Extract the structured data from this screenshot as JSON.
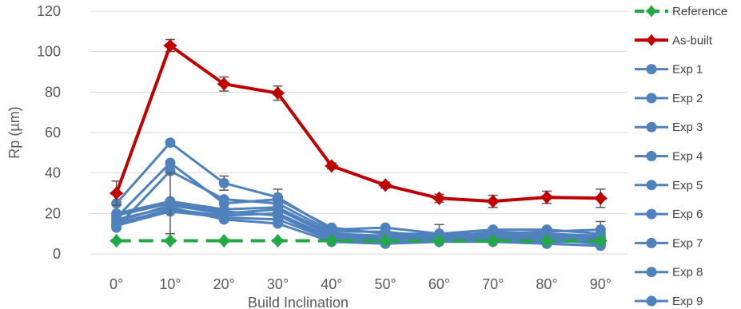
{
  "chart_data": {
    "type": "line",
    "title": "",
    "xlabel": "Build Inclination",
    "ylabel": "Rp (µm)",
    "categories": [
      "0°",
      "10°",
      "20°",
      "30°",
      "40°",
      "50°",
      "60°",
      "70°",
      "80°",
      "90°"
    ],
    "ylim": [
      0,
      120
    ],
    "yticks": [
      0,
      20,
      40,
      60,
      80,
      100,
      120
    ],
    "grid": true,
    "legend_position": "right",
    "series": [
      {
        "name": "Reference",
        "color": "#22a845",
        "style": "dashed",
        "marker": "star",
        "values": [
          6.5,
          6.5,
          6.5,
          6.5,
          6.5,
          6.5,
          6.5,
          6.5,
          6.5,
          6.5
        ],
        "errors": null
      },
      {
        "name": "As-built",
        "color": "#c00000",
        "style": "solid",
        "marker": "star",
        "values": [
          30,
          103,
          84,
          79.5,
          43.5,
          34,
          27.5,
          26,
          28,
          27.5
        ],
        "errors": [
          6,
          3,
          3.5,
          3.5,
          1.5,
          1.5,
          2,
          3,
          3,
          4.5
        ]
      },
      {
        "name": "Exp 1",
        "color": "#4f81bd",
        "style": "solid",
        "marker": "circle",
        "values": [
          25,
          55,
          35,
          28,
          12,
          13,
          10,
          12,
          12,
          10
        ],
        "errors": [
          0,
          0,
          3.5,
          4,
          0,
          0,
          4.5,
          0,
          0,
          6
        ]
      },
      {
        "name": "Exp 2",
        "color": "#4f81bd",
        "style": "solid",
        "marker": "circle",
        "values": [
          18,
          45,
          25,
          27,
          13,
          10,
          10,
          10,
          11,
          12
        ],
        "errors": [
          0,
          0,
          0,
          0,
          0,
          0,
          0,
          0,
          0,
          0
        ]
      },
      {
        "name": "Exp 3",
        "color": "#4f81bd",
        "style": "solid",
        "marker": "circle",
        "values": [
          13,
          41,
          27,
          25,
          11,
          11,
          8,
          11,
          10,
          9
        ],
        "errors": [
          0,
          0,
          0,
          0,
          0,
          0,
          0,
          0,
          0,
          0
        ]
      },
      {
        "name": "Exp 4",
        "color": "#4f81bd",
        "style": "solid",
        "marker": "circle",
        "values": [
          20,
          26,
          22,
          23,
          10,
          9,
          9,
          10,
          9,
          8
        ],
        "errors": [
          0,
          0,
          0,
          0,
          0,
          0,
          0,
          0,
          0,
          0
        ]
      },
      {
        "name": "Exp 5",
        "color": "#4f81bd",
        "style": "solid",
        "marker": "circle",
        "values": [
          16,
          24,
          20,
          22,
          9,
          8,
          8,
          9,
          8,
          7
        ],
        "errors": [
          0,
          0,
          0,
          0,
          0,
          0,
          0,
          0,
          0,
          0
        ]
      },
      {
        "name": "Exp 6",
        "color": "#4f81bd",
        "style": "solid",
        "marker": "circle",
        "values": [
          15,
          22,
          19,
          20,
          8,
          7,
          7,
          8,
          7,
          6
        ],
        "errors": [
          0,
          0,
          0,
          0,
          0,
          0,
          0,
          0,
          0,
          0
        ]
      },
      {
        "name": "Exp 7",
        "color": "#4f81bd",
        "style": "solid",
        "marker": "circle",
        "values": [
          14,
          21,
          18,
          17,
          7,
          6,
          7,
          7,
          7,
          5
        ],
        "errors": [
          0,
          0,
          0,
          0,
          0,
          0,
          0,
          0,
          0,
          0
        ]
      },
      {
        "name": "Exp 8",
        "color": "#4f81bd",
        "style": "solid",
        "marker": "circle",
        "values": [
          17,
          23,
          17,
          15,
          6,
          5,
          6,
          6,
          5,
          4
        ],
        "errors": [
          0,
          0,
          0,
          0,
          0,
          0,
          0,
          0,
          0,
          0
        ]
      },
      {
        "name": "Exp 9",
        "color": "#4f81bd",
        "style": "solid",
        "marker": "circle",
        "values": [
          19,
          25,
          21,
          19,
          7,
          6,
          6,
          7,
          6,
          6
        ],
        "errors": [
          0,
          15,
          0,
          0,
          0,
          0,
          0,
          0,
          0,
          0
        ]
      }
    ]
  }
}
